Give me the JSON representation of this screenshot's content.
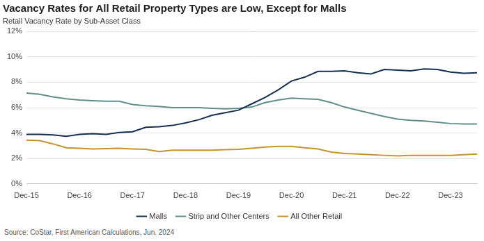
{
  "chart_data": {
    "type": "line",
    "title": "Vacancy Rates for All Retail Property Types are Low, Except for Malls",
    "subtitle": "Retail Vacancy Rate by Sub-Asset Class",
    "source": "Source: CoStar, First American Calculations, Jun. 2024",
    "categories": [
      "Dec-15",
      null,
      null,
      null,
      "Dec-16",
      null,
      null,
      null,
      "Dec-17",
      null,
      null,
      null,
      "Dec-18",
      null,
      null,
      null,
      "Dec-19",
      null,
      null,
      null,
      "Dec-20",
      null,
      null,
      null,
      "Dec-21",
      null,
      null,
      null,
      "Dec-22",
      null,
      null,
      null,
      "Dec-23",
      null,
      null
    ],
    "series": [
      {
        "name": "Malls",
        "color": "#14304f",
        "values": [
          3.9,
          3.9,
          3.85,
          3.75,
          3.9,
          3.95,
          3.9,
          4.05,
          4.1,
          4.45,
          4.5,
          4.6,
          4.8,
          5.05,
          5.4,
          5.6,
          5.8,
          6.3,
          6.8,
          7.4,
          8.1,
          8.4,
          8.85,
          8.85,
          8.9,
          8.75,
          8.65,
          9.0,
          8.95,
          8.9,
          9.05,
          9.0,
          8.8,
          8.7,
          8.75
        ]
      },
      {
        "name": "Strip and Other Centers",
        "color": "#5f8f88",
        "values": [
          7.15,
          7.05,
          6.85,
          6.7,
          6.6,
          6.55,
          6.5,
          6.5,
          6.25,
          6.15,
          6.1,
          6.0,
          6.0,
          6.0,
          5.95,
          5.9,
          5.95,
          6.05,
          6.4,
          6.6,
          6.75,
          6.7,
          6.65,
          6.4,
          6.05,
          5.8,
          5.55,
          5.3,
          5.1,
          5.0,
          4.95,
          4.85,
          4.75,
          4.72,
          4.72
        ]
      },
      {
        "name": "All Other Retail",
        "color": "#c8922a",
        "values": [
          3.45,
          3.4,
          3.15,
          2.85,
          2.8,
          2.75,
          2.78,
          2.8,
          2.75,
          2.72,
          2.55,
          2.65,
          2.65,
          2.65,
          2.65,
          2.7,
          2.72,
          2.8,
          2.9,
          2.95,
          2.95,
          2.85,
          2.75,
          2.5,
          2.4,
          2.35,
          2.3,
          2.25,
          2.2,
          2.25,
          2.25,
          2.25,
          2.25,
          2.3,
          2.35
        ]
      }
    ],
    "ylim": [
      0,
      12
    ],
    "yticks": [
      {
        "value": 0,
        "label": "0%"
      },
      {
        "value": 2,
        "label": "2%"
      },
      {
        "value": 4,
        "label": "4%"
      },
      {
        "value": 6,
        "label": "6%"
      },
      {
        "value": 8,
        "label": "8%"
      },
      {
        "value": 10,
        "label": "10%"
      },
      {
        "value": 12,
        "label": "12%"
      }
    ],
    "grid": true,
    "legend": "bottom"
  }
}
